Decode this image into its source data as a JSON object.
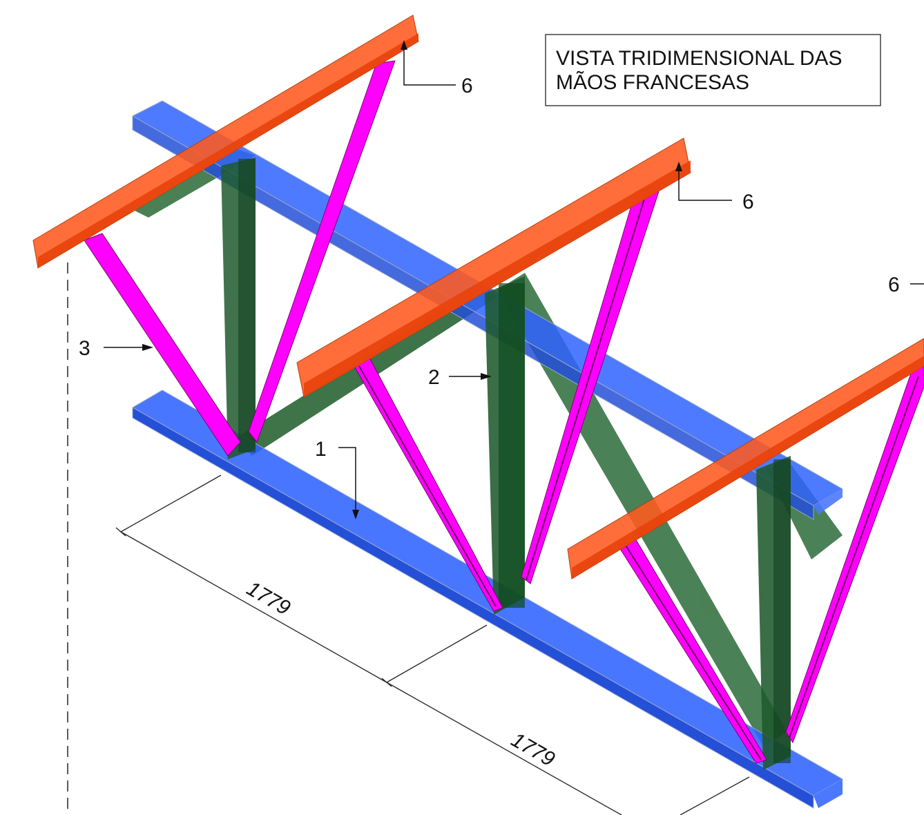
{
  "title": {
    "line1": "VISTA TRIDIMENSIONAL DAS",
    "line2": "MÃOS FRANCESAS"
  },
  "labels": {
    "part1": "1",
    "part2": "2",
    "part3": "3",
    "part6_a": "6",
    "part6_b": "6",
    "part6_c": "6"
  },
  "dimensions": {
    "span_1": "1779",
    "span_2": "1779"
  },
  "colors": {
    "chord": "#2f63ff",
    "purlin": "#ff5a1f",
    "post": "#1f5a2c",
    "brace": "#ff00ff"
  }
}
